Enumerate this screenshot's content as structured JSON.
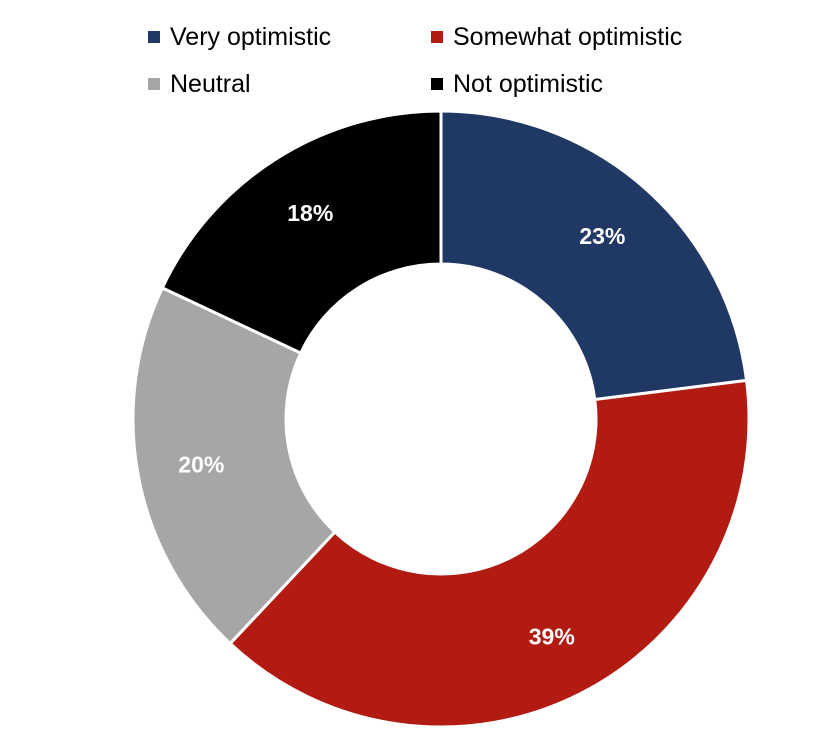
{
  "chart_data": {
    "type": "pie",
    "variant": "donut",
    "title": "",
    "legend_position": "top",
    "categories": [
      "Very optimistic",
      "Somewhat optimistic",
      "Neutral",
      "Not optimistic"
    ],
    "values": [
      23,
      39,
      20,
      18
    ],
    "value_labels": [
      "23%",
      "39%",
      "20%",
      "18%"
    ],
    "colors": [
      "#203864",
      "#b11b12",
      "#a6a6a6",
      "#000000"
    ],
    "label_color": "#ffffff",
    "separator_color": "#ffffff"
  }
}
